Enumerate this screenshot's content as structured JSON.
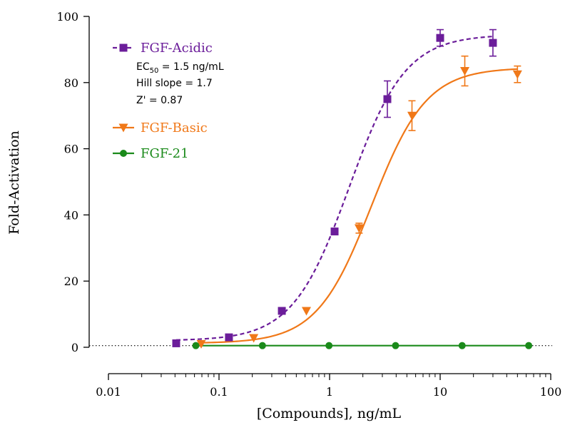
{
  "chart_data": {
    "type": "scatter",
    "xlabel": "[Compounds], ng/mL",
    "ylabel": "Fold-Activation",
    "x_scale": "log",
    "xlim": [
      0.01,
      100
    ],
    "ylim": [
      0,
      100
    ],
    "x_ticks": [
      "0.01",
      "0.1",
      "1",
      "10",
      "100"
    ],
    "y_ticks": [
      "0",
      "20",
      "40",
      "60",
      "80",
      "100"
    ],
    "baseline": {
      "y": 0.5,
      "style": "dotted"
    },
    "legend_position": "top-left",
    "series": [
      {
        "name": "FGF-Acidic",
        "color": "#6b1d9a",
        "marker": "square",
        "line_style": "dashed",
        "x": [
          0.041,
          0.123,
          0.37,
          1.11,
          3.33,
          10,
          30
        ],
        "y": [
          1.2,
          3.0,
          11.0,
          35.0,
          75.0,
          93.5,
          92.0
        ],
        "error": [
          0,
          0,
          0,
          0,
          5.5,
          2.5,
          4.0
        ],
        "fit": {
          "bottom": 2.0,
          "top": 94.5,
          "ec50": 1.5,
          "hill": 1.7
        }
      },
      {
        "name": "FGF-Basic",
        "color": "#f07818",
        "marker": "triangle-down",
        "line_style": "solid",
        "x": [
          0.069,
          0.206,
          0.617,
          1.85,
          5.56,
          16.7,
          50
        ],
        "y": [
          1.0,
          2.8,
          11.0,
          36.0,
          70.0,
          83.5,
          82.5
        ],
        "error": [
          0,
          0,
          0,
          1.5,
          4.5,
          4.5,
          2.5
        ],
        "fit": {
          "bottom": 1.2,
          "top": 84.5,
          "ec50": 2.4,
          "hill": 1.75
        }
      },
      {
        "name": "FGF-21",
        "color": "#1a8a1a",
        "marker": "circle",
        "line_style": "solid",
        "x": [
          0.0617,
          0.247,
          0.988,
          3.95,
          15.8,
          63.2
        ],
        "y": [
          0.5,
          0.5,
          0.5,
          0.5,
          0.5,
          0.5
        ],
        "error": [
          0,
          0,
          0,
          0,
          0,
          0
        ],
        "fit": {
          "bottom": 0.5,
          "top": 0.5,
          "ec50": 1,
          "hill": 1
        }
      }
    ],
    "annotations": {
      "ec50_prefix": "EC",
      "ec50_sub": "50",
      "ec50_rest": " = 1.5 ng/mL",
      "hill": "Hill slope = 1.7",
      "z_prime": "Z' = 0.87"
    }
  }
}
